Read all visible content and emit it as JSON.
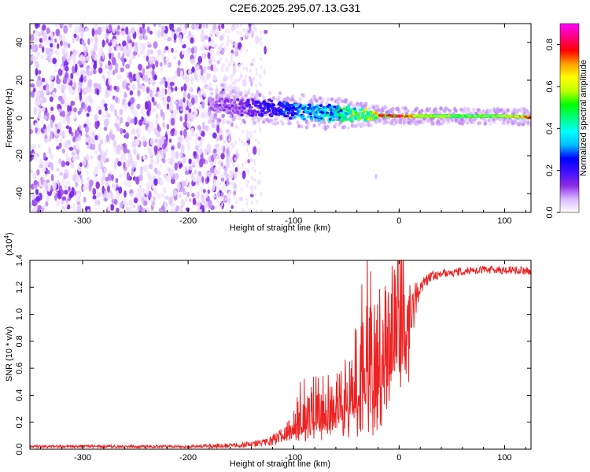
{
  "title": "C2E6.2025.295.07.13.G31",
  "chart_data": [
    {
      "type": "heatmap",
      "name": "spectrogram",
      "xlabel": "Height of straight line (km)",
      "ylabel": "Frequency (Hz)",
      "xlim": [
        -350,
        125
      ],
      "ylim": [
        -50,
        50
      ],
      "xticks": [
        -300,
        -200,
        -100,
        0,
        100
      ],
      "yticks": [
        -40,
        -20,
        0,
        20,
        40
      ],
      "colorbar": {
        "label": "Normalized spectral amplitude",
        "range": [
          0,
          0.9
        ],
        "ticks": [
          "0.0",
          "0.2",
          "0.4",
          "0.6",
          "0.8"
        ],
        "tick_values": [
          0,
          0.2,
          0.4,
          0.6,
          0.8
        ],
        "colors": [
          "#ffffff",
          "#d8b8ff",
          "#8a2be2",
          "#4010ff",
          "#0000ff",
          "#00bfff",
          "#00ffff",
          "#00ff80",
          "#00ff00",
          "#c0ff00",
          "#ffff00",
          "#ffa000",
          "#ff0000",
          "#ff0080",
          "#ff00ff"
        ]
      },
      "features": {
        "noise_x_range": [
          -350,
          -125
        ],
        "signal_start_x": -180,
        "anomaly_point": [
          -22,
          -31
        ],
        "track": [
          {
            "x": -180,
            "freq": 7,
            "width": 5,
            "amp": 0.12
          },
          {
            "x": -160,
            "freq": 6,
            "width": 5,
            "amp": 0.14
          },
          {
            "x": -140,
            "freq": 5.5,
            "width": 5,
            "amp": 0.18
          },
          {
            "x": -120,
            "freq": 5,
            "width": 5,
            "amp": 0.25
          },
          {
            "x": -100,
            "freq": 4,
            "width": 5,
            "amp": 0.32
          },
          {
            "x": -80,
            "freq": 3,
            "width": 5,
            "amp": 0.4
          },
          {
            "x": -60,
            "freq": 2.5,
            "width": 5,
            "amp": 0.45
          },
          {
            "x": -40,
            "freq": 2,
            "width": 4,
            "amp": 0.55
          },
          {
            "x": -20,
            "freq": 1.5,
            "width": 3,
            "amp": 0.7
          },
          {
            "x": 0,
            "freq": 1,
            "width": 2.5,
            "amp": 0.8
          },
          {
            "x": 20,
            "freq": 1,
            "width": 2.5,
            "amp": 0.6
          },
          {
            "x": 60,
            "freq": 1,
            "width": 2.5,
            "amp": 0.55
          },
          {
            "x": 100,
            "freq": 1,
            "width": 2.5,
            "amp": 0.58
          },
          {
            "x": 125,
            "freq": 0.5,
            "width": 2.5,
            "amp": 0.72
          }
        ]
      }
    },
    {
      "type": "line",
      "name": "snr",
      "xlabel": "Height of straight line (km)",
      "ylabel": "SNR (10 * v/v)",
      "y_multiplier": "(x10",
      "y_multiplier_exp": "4",
      "y_multiplier_close": ")",
      "xlim": [
        -350,
        125
      ],
      "ylim": [
        0,
        1.4
      ],
      "xticks": [
        -300,
        -200,
        -100,
        0,
        100
      ],
      "yticks": [
        "0.0",
        "0.2",
        "0.4",
        "0.6",
        "0.8",
        "1.0",
        "1.2",
        "1.4"
      ],
      "ytick_values": [
        0,
        0.2,
        0.4,
        0.6,
        0.8,
        1.0,
        1.2,
        1.4
      ],
      "color": "#ee2222",
      "series": {
        "name": "SNR",
        "x": [
          -350,
          -300,
          -250,
          -200,
          -150,
          -125,
          -110,
          -100,
          -90,
          -80,
          -70,
          -60,
          -50,
          -40,
          -30,
          -20,
          -15,
          -10,
          0,
          10,
          15,
          20,
          30,
          40,
          60,
          80,
          100,
          125
        ],
        "y": [
          0.02,
          0.02,
          0.02,
          0.02,
          0.03,
          0.05,
          0.1,
          0.18,
          0.25,
          0.3,
          0.28,
          0.35,
          0.45,
          0.6,
          0.7,
          0.75,
          0.8,
          0.85,
          0.95,
          0.95,
          1.1,
          1.2,
          1.28,
          1.3,
          1.32,
          1.33,
          1.33,
          1.32
        ],
        "spread": [
          0.01,
          0.01,
          0.01,
          0.01,
          0.02,
          0.03,
          0.06,
          0.1,
          0.15,
          0.15,
          0.15,
          0.2,
          0.25,
          0.35,
          0.4,
          0.45,
          0.45,
          0.4,
          0.35,
          0.3,
          0.15,
          0.06,
          0.04,
          0.03,
          0.03,
          0.03,
          0.03,
          0.03
        ]
      }
    }
  ]
}
